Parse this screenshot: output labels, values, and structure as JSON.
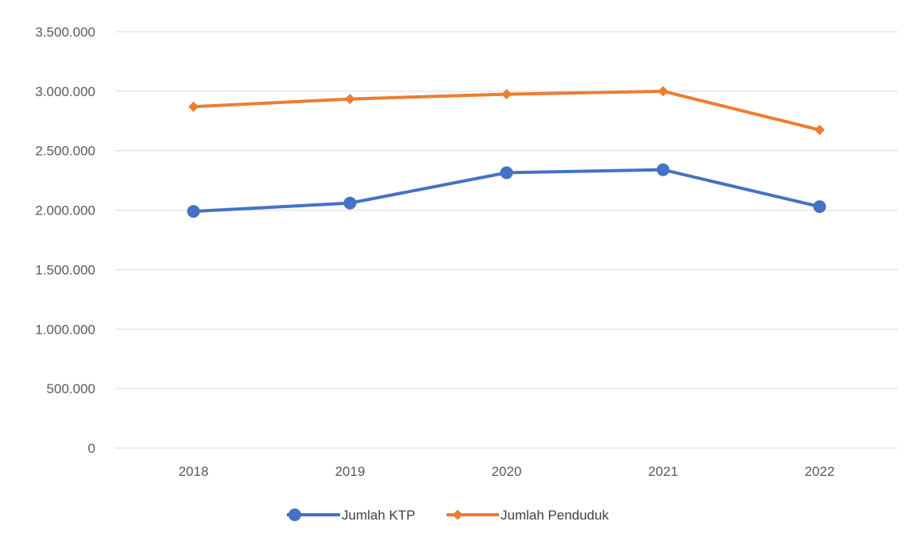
{
  "chart_data": {
    "type": "line",
    "title": "",
    "xlabel": "",
    "ylabel": "",
    "categories": [
      "2018",
      "2019",
      "2020",
      "2021",
      "2022"
    ],
    "ylim": [
      0,
      3500000
    ],
    "yticks": [
      0,
      500000,
      1000000,
      1500000,
      2000000,
      2500000,
      3000000,
      3500000
    ],
    "ytick_labels": [
      "0",
      "500.000",
      "1.000.000",
      "1.500.000",
      "2.000.000",
      "2.500.000",
      "3.000.000",
      "3.500.000"
    ],
    "grid": "horizontal",
    "legend_position": "bottom",
    "series": [
      {
        "name": "Jumlah KTP",
        "color": "#4472c4",
        "marker": "circle",
        "values": [
          1990000,
          2060000,
          2315000,
          2340000,
          2030000
        ]
      },
      {
        "name": "Jumlah Penduduk",
        "color": "#ed7d31",
        "marker": "diamond",
        "values": [
          2870000,
          2935000,
          2975000,
          3000000,
          2675000
        ]
      }
    ]
  }
}
